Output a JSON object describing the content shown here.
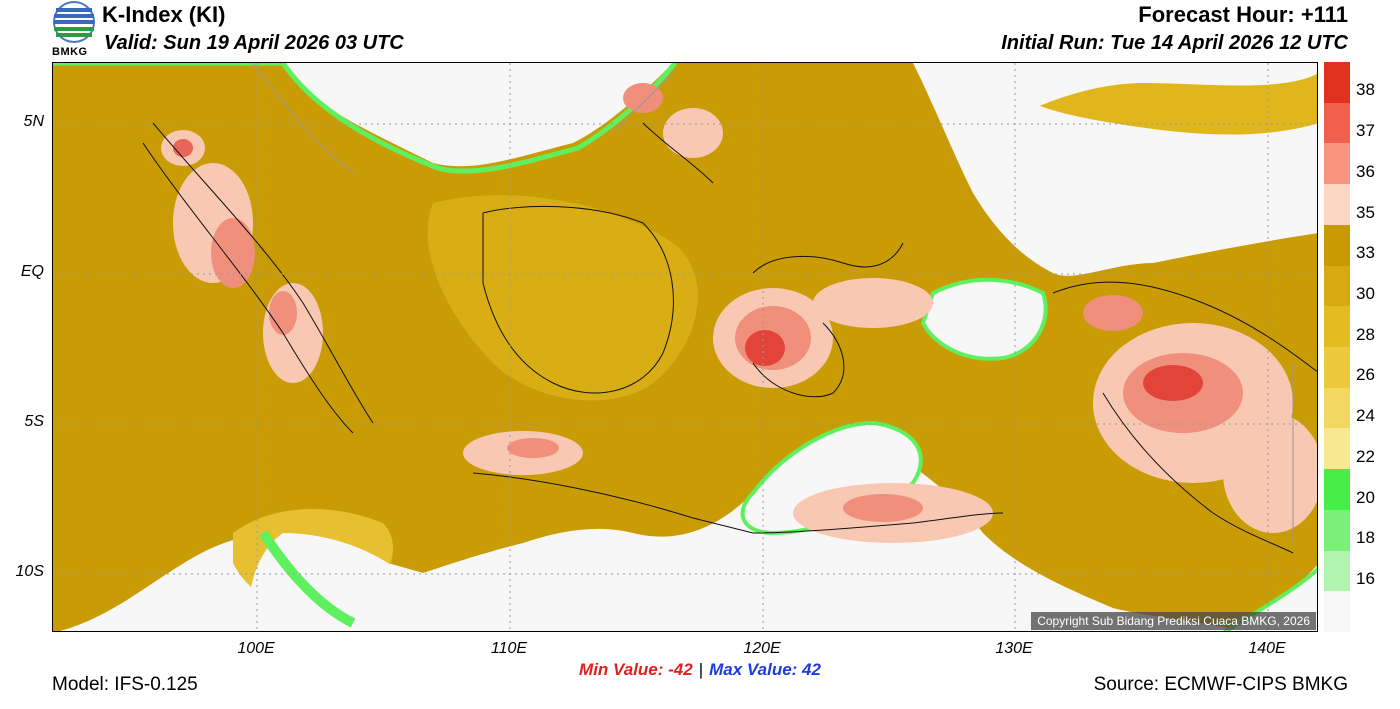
{
  "header": {
    "title": "K-Index (KI)",
    "valid": "Valid: Sun 19 April 2026 03 UTC",
    "forecast_hour": "Forecast Hour: +111",
    "initial_run": "Initial Run: Tue 14 April 2026 12 UTC",
    "logo_text": "BMKG"
  },
  "map": {
    "lat_labels": [
      "5N",
      "EQ",
      "5S",
      "10S"
    ],
    "lon_labels": [
      "100E",
      "110E",
      "120E",
      "130E",
      "140E"
    ],
    "copyright": "Copyright Sub Bidang Prediksi Cuaca BMKG, 2026"
  },
  "colorbar": {
    "labels": [
      "38",
      "37",
      "36",
      "35",
      "33",
      "30",
      "28",
      "26",
      "24",
      "22",
      "20",
      "18",
      "16"
    ],
    "colors": [
      "#e0301e",
      "#f0604c",
      "#f89480",
      "#fcd8c4",
      "#c89a00",
      "#d6aa10",
      "#e2bc20",
      "#ecca3c",
      "#f2d860",
      "#f8e890",
      "#48ee48",
      "#7af07a",
      "#b0f4b0",
      "#f8f8f8"
    ]
  },
  "footer": {
    "min_label": "Min Value: -42",
    "separator": "|",
    "max_label": "Max Value:  42",
    "model": "Model: IFS-0.125",
    "source": "Source: ECMWF-CIPS BMKG"
  }
}
